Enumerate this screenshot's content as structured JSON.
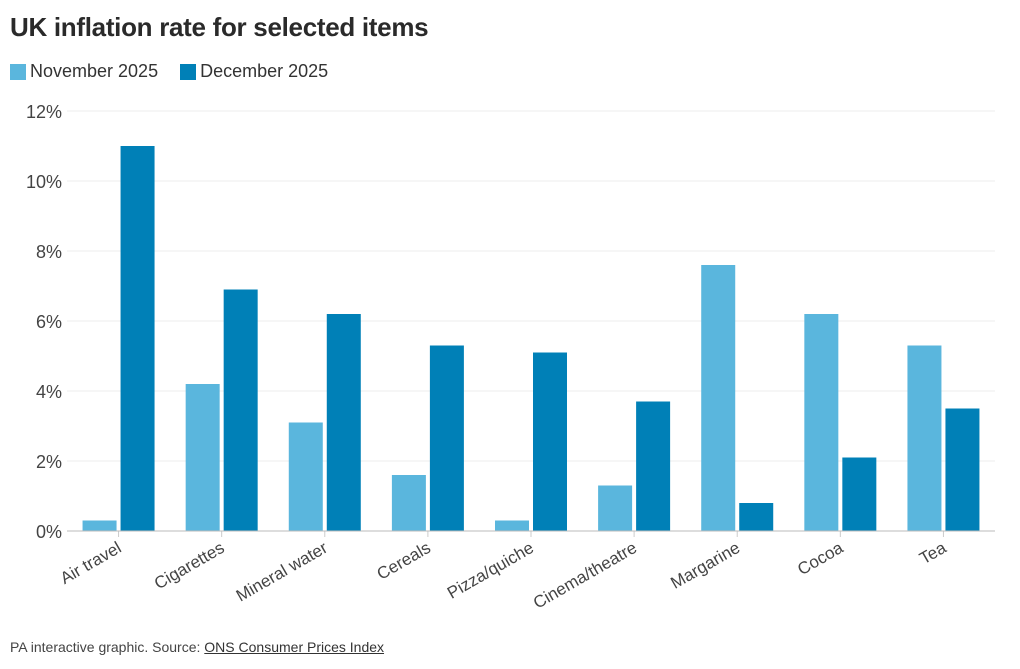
{
  "chart_data": {
    "type": "bar",
    "title": "UK inflation rate for selected items",
    "categories": [
      "Air travel",
      "Cigarettes",
      "Mineral water",
      "Cereals",
      "Pizza/quiche",
      "Cinema/theatre",
      "Margarine",
      "Cocoa",
      "Tea"
    ],
    "series": [
      {
        "name": "November 2025",
        "color": "#5ab6dd",
        "values": [
          0.3,
          4.2,
          3.1,
          1.6,
          0.3,
          1.3,
          7.6,
          6.2,
          5.3
        ]
      },
      {
        "name": "December 2025",
        "color": "#0080b7",
        "values": [
          11.0,
          6.9,
          6.2,
          5.3,
          5.1,
          3.7,
          0.8,
          2.1,
          3.5
        ]
      }
    ],
    "ylim": [
      0,
      12
    ],
    "yticks": [
      0,
      2,
      4,
      6,
      8,
      10,
      12
    ],
    "ytick_labels": [
      "0%",
      "2%",
      "4%",
      "6%",
      "8%",
      "10%",
      "12%"
    ],
    "grid": true,
    "legend_position": "top-left"
  },
  "footer": {
    "prefix": "PA interactive graphic. Source: ",
    "link": "ONS Consumer Prices Index"
  }
}
